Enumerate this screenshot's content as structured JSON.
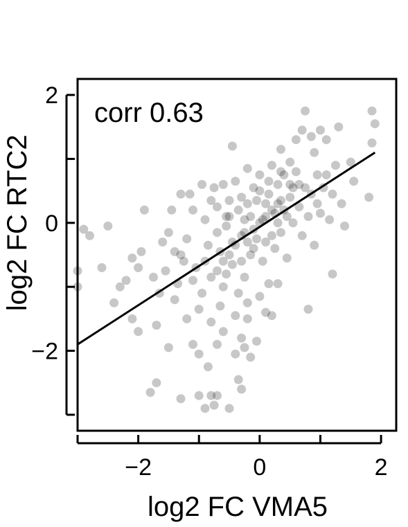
{
  "chart_data": {
    "type": "scatter",
    "xlabel": "log2 FC VMA5",
    "ylabel": "log2 FC RTC2",
    "annotation": "corr 0.63",
    "xlim": [
      -3.0,
      2.25
    ],
    "ylim": [
      -3.25,
      2.25
    ],
    "xticks": [
      -3,
      -2,
      -1,
      0,
      1,
      2
    ],
    "xtick_labels": [
      "",
      "−2",
      "",
      "0",
      "",
      "2"
    ],
    "yticks": [
      -3,
      -2,
      -1,
      0,
      1,
      2
    ],
    "ytick_labels": [
      "",
      "−2",
      "",
      "0",
      "",
      "2"
    ],
    "grid": false,
    "point_color": "#000000",
    "point_opacity": 0.22,
    "fit_line": {
      "x": [
        -3.0,
        1.9
      ],
      "y": [
        -1.9,
        1.1
      ],
      "color": "#000000"
    },
    "points": [
      [
        -3.0,
        -0.75
      ],
      [
        -3.0,
        -1.0
      ],
      [
        -2.9,
        -0.1
      ],
      [
        -2.8,
        -0.2
      ],
      [
        -2.6,
        -0.7
      ],
      [
        -2.5,
        -0.05
      ],
      [
        -2.4,
        -1.25
      ],
      [
        -2.2,
        -0.9
      ],
      [
        -2.1,
        -0.55
      ],
      [
        -2.1,
        -1.5
      ],
      [
        -2.0,
        -1.7
      ],
      [
        -2.0,
        -0.7
      ],
      [
        -1.9,
        0.2
      ],
      [
        -1.8,
        -2.65
      ],
      [
        -1.7,
        -2.5
      ],
      [
        -1.7,
        -1.6
      ],
      [
        -1.6,
        -0.3
      ],
      [
        -1.55,
        -0.75
      ],
      [
        -1.5,
        -1.95
      ],
      [
        -1.4,
        -0.45
      ],
      [
        -1.4,
        -1.2
      ],
      [
        -1.3,
        -2.75
      ],
      [
        -1.3,
        0.45
      ],
      [
        -1.25,
        -0.6
      ],
      [
        -1.2,
        -1.5
      ],
      [
        -1.1,
        -1.9
      ],
      [
        -1.1,
        0.2
      ],
      [
        -1.0,
        -2.05
      ],
      [
        -1.0,
        -2.7
      ],
      [
        -0.95,
        0.6
      ],
      [
        -0.9,
        -2.9
      ],
      [
        -0.85,
        -2.25
      ],
      [
        -0.8,
        -2.7
      ],
      [
        -0.8,
        0.35
      ],
      [
        -0.75,
        -2.85
      ],
      [
        -0.7,
        -2.7
      ],
      [
        -0.7,
        -1.9
      ],
      [
        -0.65,
        -1.3
      ],
      [
        -0.6,
        -1.0
      ],
      [
        -0.55,
        -0.8
      ],
      [
        -0.5,
        -2.9
      ],
      [
        -0.45,
        1.2
      ],
      [
        -0.4,
        -2.05
      ],
      [
        -0.35,
        -2.45
      ],
      [
        -0.3,
        -2.6
      ],
      [
        -0.3,
        -1.8
      ],
      [
        -0.25,
        -1.95
      ],
      [
        -0.2,
        -1.5
      ],
      [
        -0.15,
        -2.1
      ],
      [
        -0.05,
        -1.85
      ],
      [
        0.1,
        -1.4
      ],
      [
        0.2,
        -1.45
      ],
      [
        0.3,
        -0.95
      ],
      [
        0.35,
        1.15
      ],
      [
        0.5,
        0.95
      ],
      [
        0.6,
        1.3
      ],
      [
        0.7,
        1.45
      ],
      [
        0.75,
        1.75
      ],
      [
        0.8,
        -1.35
      ],
      [
        0.85,
        1.35
      ],
      [
        0.9,
        1.1
      ],
      [
        0.95,
        0.75
      ],
      [
        1.0,
        1.45
      ],
      [
        1.05,
        0.55
      ],
      [
        1.1,
        1.3
      ],
      [
        1.2,
        0.45
      ],
      [
        1.2,
        -0.8
      ],
      [
        1.3,
        1.5
      ],
      [
        1.35,
        0.3
      ],
      [
        1.4,
        -0.05
      ],
      [
        1.5,
        0.95
      ],
      [
        1.55,
        0.65
      ],
      [
        1.8,
        0.4
      ],
      [
        1.85,
        1.25
      ],
      [
        1.9,
        1.55
      ],
      [
        1.85,
        1.75
      ],
      [
        -2.3,
        -1.0
      ],
      [
        -1.95,
        -0.45
      ],
      [
        -1.75,
        -0.85
      ],
      [
        -1.65,
        -1.1
      ],
      [
        -1.5,
        -0.15
      ],
      [
        -1.45,
        0.2
      ],
      [
        -1.35,
        -0.95
      ],
      [
        -1.2,
        -0.25
      ],
      [
        -1.15,
        0.45
      ],
      [
        -1.05,
        -0.7
      ],
      [
        -0.95,
        -1.1
      ],
      [
        -0.9,
        0.05
      ],
      [
        -0.85,
        -0.35
      ],
      [
        -0.75,
        0.55
      ],
      [
        -0.7,
        0.25
      ],
      [
        -0.65,
        -0.45
      ],
      [
        -0.6,
        0.6
      ],
      [
        -0.55,
        -0.05
      ],
      [
        -0.5,
        0.35
      ],
      [
        -0.45,
        -0.65
      ],
      [
        -0.4,
        0.65
      ],
      [
        -0.35,
        -1.1
      ],
      [
        -0.3,
        0.4
      ],
      [
        -0.25,
        -0.85
      ],
      [
        -0.2,
        0.85
      ],
      [
        -0.15,
        -0.5
      ],
      [
        -0.1,
        0.55
      ],
      [
        -0.05,
        -0.25
      ],
      [
        0.0,
        0.75
      ],
      [
        0.05,
        -0.6
      ],
      [
        0.1,
        0.3
      ],
      [
        0.15,
        -0.95
      ],
      [
        0.2,
        0.9
      ],
      [
        0.25,
        -0.4
      ],
      [
        0.3,
        0.6
      ],
      [
        0.35,
        -0.15
      ],
      [
        0.4,
        0.75
      ],
      [
        0.45,
        -0.55
      ],
      [
        0.5,
        0.4
      ],
      [
        0.55,
        0.0
      ],
      [
        0.6,
        0.8
      ],
      [
        0.65,
        0.25
      ],
      [
        0.7,
        -0.2
      ],
      [
        0.75,
        0.55
      ],
      [
        0.8,
        0.1
      ],
      [
        0.85,
        0.45
      ],
      [
        0.9,
        -0.35
      ],
      [
        0.95,
        0.3
      ],
      [
        1.0,
        0.15
      ],
      [
        1.1,
        0.75
      ],
      [
        1.15,
        0.05
      ],
      [
        1.25,
        0.9
      ],
      [
        -1.0,
        -1.35
      ],
      [
        -0.8,
        -1.55
      ],
      [
        -0.6,
        -1.7
      ],
      [
        -0.4,
        -1.45
      ],
      [
        -0.2,
        -1.25
      ],
      [
        0.0,
        -1.15
      ],
      [
        -1.3,
        -0.5
      ],
      [
        -1.1,
        -0.9
      ],
      [
        -0.9,
        -0.6
      ],
      [
        -0.7,
        -0.15
      ],
      [
        -0.55,
        0.1
      ],
      [
        -0.45,
        -0.3
      ],
      [
        -0.35,
        0.2
      ],
      [
        -0.25,
        -0.15
      ],
      [
        -0.15,
        0.1
      ],
      [
        -0.05,
        0.35
      ],
      [
        0.05,
        0.05
      ],
      [
        0.15,
        0.45
      ],
      [
        0.25,
        0.15
      ],
      [
        0.35,
        0.35
      ],
      [
        0.45,
        0.1
      ],
      [
        0.55,
        0.55
      ],
      [
        0.65,
        0.6
      ],
      [
        -0.5,
        -0.5
      ],
      [
        -0.4,
        -0.35
      ],
      [
        -0.3,
        -0.2
      ],
      [
        -0.2,
        -0.3
      ],
      [
        -0.1,
        -0.1
      ],
      [
        0.0,
        0.0
      ],
      [
        0.1,
        0.1
      ],
      [
        0.2,
        0.2
      ],
      [
        0.3,
        0.3
      ],
      [
        -0.6,
        -0.6
      ],
      [
        -0.7,
        -0.75
      ],
      [
        -0.8,
        -0.85
      ],
      [
        -0.2,
        0.3
      ],
      [
        0.0,
        0.5
      ],
      [
        0.2,
        -0.2
      ],
      [
        0.4,
        0.2
      ],
      [
        -0.3,
        -0.6
      ],
      [
        -0.1,
        -0.4
      ],
      [
        0.1,
        -0.3
      ],
      [
        0.3,
        0.0
      ],
      [
        0.5,
        0.6
      ],
      [
        -0.5,
        0.1
      ],
      [
        -0.25,
        0.05
      ],
      [
        0.15,
        0.65
      ],
      [
        0.35,
        0.8
      ]
    ]
  }
}
